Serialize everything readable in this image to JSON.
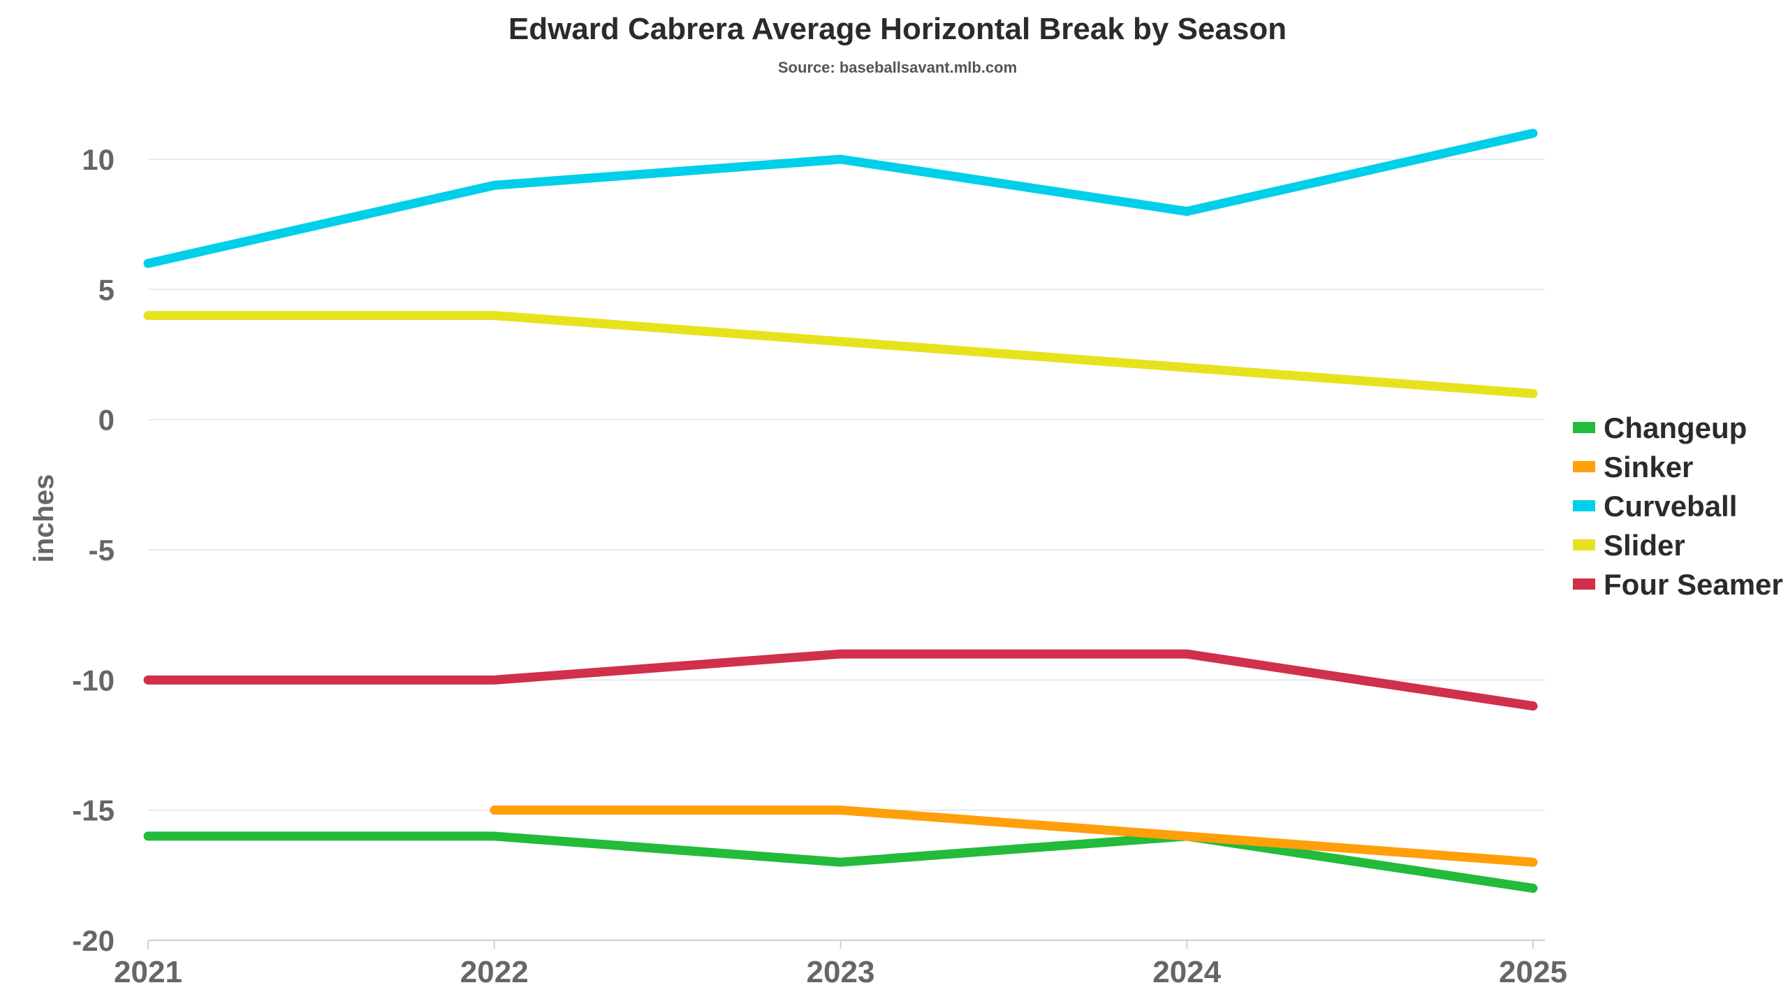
{
  "chart_data": {
    "type": "line",
    "title": "Edward Cabrera Average Horizontal Break by Season",
    "subtitle": "Source: baseballsavant.mlb.com",
    "xlabel": "",
    "ylabel": "inches",
    "x": [
      "2021",
      "2022",
      "2023",
      "2024",
      "2025"
    ],
    "yticks": [
      "10",
      "5",
      "0",
      "-5",
      "-10",
      "-15",
      "-20"
    ],
    "ylim": [
      -20,
      12
    ],
    "grid": true,
    "legend_position": "right",
    "series": [
      {
        "name": "Changeup",
        "color": "#22bb3a",
        "values": [
          -16,
          -16,
          -17,
          -16,
          -18
        ]
      },
      {
        "name": "Sinker",
        "color": "#ff9f0a",
        "values": [
          null,
          -15,
          -15,
          -16,
          -17
        ]
      },
      {
        "name": "Curveball",
        "color": "#00cfea",
        "values": [
          6,
          9,
          10,
          8,
          11
        ]
      },
      {
        "name": "Slider",
        "color": "#e8e21e",
        "values": [
          4,
          4,
          3,
          2,
          1
        ]
      },
      {
        "name": "Four Seamer",
        "color": "#d0304a",
        "values": [
          -10,
          -10,
          -9,
          -9,
          -11
        ]
      }
    ]
  }
}
